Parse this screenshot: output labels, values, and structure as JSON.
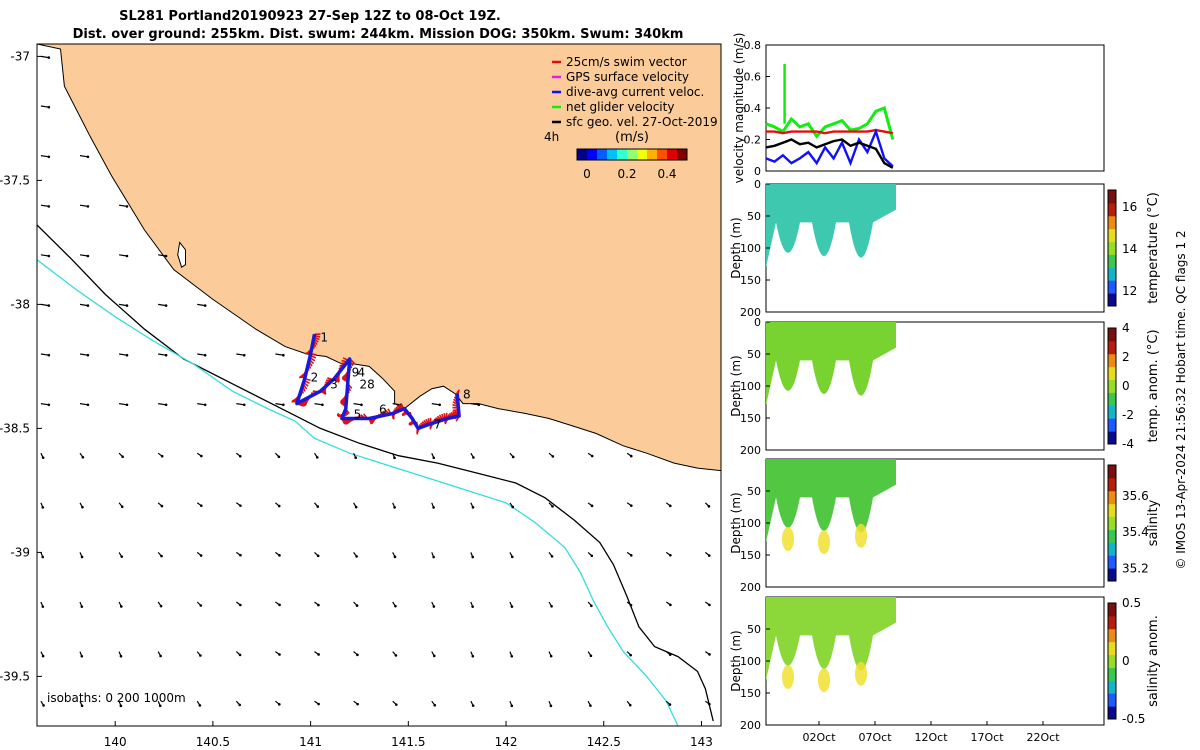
{
  "title": {
    "line1": "SL281 Portland20190923 27-Sep 12Z to 08-Oct 19Z.",
    "line2": "Dist. over ground: 255km. Dist. swum: 244km. Mission DOG: 350km. Swum: 340km"
  },
  "colors": {
    "land": "#fbcc9a",
    "coast": "#000000",
    "isobath_200": "#000000",
    "isobath_1000": "#33dddd",
    "track": "#1a1ad6",
    "swim": "#e01010",
    "gps": "#e020e0",
    "dac": "#1010ff",
    "net": "#10ee10",
    "geo": "#000000"
  },
  "chart_data": [
    {
      "id": "map",
      "type": "scatter",
      "xlabel": "",
      "ylabel": "",
      "xlim": [
        139.6,
        143.1
      ],
      "ylim": [
        -39.7,
        -36.95
      ],
      "xticks": [
        140,
        140.5,
        141,
        141.5,
        142,
        142.5,
        143
      ],
      "xtick_labels": [
        "140",
        "140.5",
        "141",
        "141.5",
        "142",
        "142.5",
        "143"
      ],
      "yticks": [
        -37,
        -37.5,
        -38,
        -38.5,
        -39,
        -39.5
      ],
      "ytick_labels": [
        "-37",
        "-37.5",
        "-38",
        "-38.5",
        "-39",
        "-39.5"
      ],
      "legend": {
        "placement": "top-right",
        "entries": [
          {
            "label": "25cm/s swim vector",
            "color": "#e01010"
          },
          {
            "label": "GPS surface velocity",
            "color": "#e020e0"
          },
          {
            "label": "dive-avg current veloc.",
            "color": "#1010ff"
          },
          {
            "label": "net glider velocity",
            "color": "#10ee10"
          },
          {
            "label": "sfc geo. vel. 27-Oct-2019",
            "color": "#000000"
          }
        ],
        "note": "4h",
        "colorbar_title": "(m/s)",
        "colorbar_ticks": [
          0,
          0.2,
          0.4
        ],
        "colorbar_tick_labels": [
          "0",
          "0.2",
          "0.4"
        ],
        "colorbar_range": [
          -0.05,
          0.5
        ]
      },
      "isobaths_label": "isobaths: 0   200  1000m",
      "coastline": [
        [
          139.6,
          -36.95
        ],
        [
          139.72,
          -36.97
        ],
        [
          139.74,
          -37.12
        ],
        [
          139.87,
          -37.32
        ],
        [
          139.98,
          -37.48
        ],
        [
          140.15,
          -37.7
        ],
        [
          140.3,
          -37.86
        ],
        [
          140.5,
          -37.98
        ],
        [
          140.72,
          -38.1
        ],
        [
          140.87,
          -38.17
        ],
        [
          140.98,
          -38.2
        ],
        [
          141.08,
          -38.21
        ],
        [
          141.16,
          -38.24
        ],
        [
          141.22,
          -38.24
        ],
        [
          141.3,
          -38.25
        ],
        [
          141.37,
          -38.3
        ],
        [
          141.43,
          -38.35
        ],
        [
          141.43,
          -38.4
        ],
        [
          141.48,
          -38.42
        ],
        [
          141.56,
          -38.37
        ],
        [
          141.62,
          -38.34
        ],
        [
          141.68,
          -38.33
        ],
        [
          141.74,
          -38.36
        ],
        [
          141.78,
          -38.4
        ],
        [
          141.86,
          -38.4
        ],
        [
          141.96,
          -38.42
        ],
        [
          142.1,
          -38.44
        ],
        [
          142.22,
          -38.46
        ],
        [
          142.34,
          -38.49
        ],
        [
          142.46,
          -38.52
        ],
        [
          142.6,
          -38.57
        ],
        [
          142.72,
          -38.6
        ],
        [
          142.86,
          -38.64
        ],
        [
          142.98,
          -38.66
        ],
        [
          143.1,
          -38.67
        ],
        [
          143.1,
          -36.95
        ]
      ],
      "isobath_200": [
        [
          139.6,
          -37.68
        ],
        [
          139.78,
          -37.82
        ],
        [
          139.95,
          -37.96
        ],
        [
          140.15,
          -38.1
        ],
        [
          140.35,
          -38.22
        ],
        [
          140.6,
          -38.32
        ],
        [
          140.85,
          -38.42
        ],
        [
          141.05,
          -38.5
        ],
        [
          141.25,
          -38.56
        ],
        [
          141.45,
          -38.61
        ],
        [
          141.65,
          -38.64
        ],
        [
          141.85,
          -38.68
        ],
        [
          142.05,
          -38.72
        ],
        [
          142.2,
          -38.78
        ],
        [
          142.35,
          -38.87
        ],
        [
          142.48,
          -38.96
        ],
        [
          142.55,
          -39.05
        ],
        [
          142.62,
          -39.18
        ],
        [
          142.68,
          -39.3
        ],
        [
          142.76,
          -39.38
        ],
        [
          142.88,
          -39.42
        ],
        [
          142.98,
          -39.48
        ],
        [
          143.02,
          -39.55
        ],
        [
          143.06,
          -39.68
        ]
      ],
      "isobath_1000": [
        [
          139.6,
          -37.82
        ],
        [
          139.8,
          -37.94
        ],
        [
          140.0,
          -38.05
        ],
        [
          140.2,
          -38.15
        ],
        [
          140.4,
          -38.24
        ],
        [
          140.6,
          -38.35
        ],
        [
          140.78,
          -38.42
        ],
        [
          140.92,
          -38.47
        ],
        [
          141.02,
          -38.54
        ],
        [
          141.2,
          -38.6
        ],
        [
          141.4,
          -38.65
        ],
        [
          141.6,
          -38.7
        ],
        [
          141.8,
          -38.75
        ],
        [
          142.0,
          -38.8
        ],
        [
          142.15,
          -38.88
        ],
        [
          142.3,
          -38.98
        ],
        [
          142.38,
          -39.08
        ],
        [
          142.45,
          -39.2
        ],
        [
          142.52,
          -39.3
        ],
        [
          142.6,
          -39.4
        ],
        [
          142.72,
          -39.5
        ],
        [
          142.82,
          -39.6
        ],
        [
          142.88,
          -39.7
        ]
      ],
      "kangaroo_lake": [
        [
          140.33,
          -37.75
        ],
        [
          140.36,
          -37.78
        ],
        [
          140.36,
          -37.84
        ],
        [
          140.34,
          -37.85
        ],
        [
          140.32,
          -37.8
        ]
      ],
      "track": [
        [
          141.02,
          -38.12
        ],
        [
          141.0,
          -38.2
        ],
        [
          140.97,
          -38.3
        ],
        [
          140.93,
          -38.4
        ],
        [
          141.05,
          -38.35
        ],
        [
          141.12,
          -38.3
        ],
        [
          141.2,
          -38.22
        ],
        [
          141.19,
          -38.32
        ],
        [
          141.18,
          -38.42
        ],
        [
          141.16,
          -38.46
        ],
        [
          141.3,
          -38.46
        ],
        [
          141.42,
          -38.44
        ],
        [
          141.48,
          -38.42
        ],
        [
          141.52,
          -38.46
        ],
        [
          141.55,
          -38.5
        ],
        [
          141.62,
          -38.48
        ],
        [
          141.7,
          -38.46
        ],
        [
          141.76,
          -38.45
        ],
        [
          141.75,
          -38.36
        ]
      ],
      "waypoint_labels": [
        {
          "text": "1",
          "lon": 141.05,
          "lat": -38.15
        },
        {
          "text": "2",
          "lon": 141.0,
          "lat": -38.31
        },
        {
          "text": "3",
          "lon": 141.1,
          "lat": -38.34
        },
        {
          "text": "4",
          "lon": 141.24,
          "lat": -38.29
        },
        {
          "text": "28",
          "lon": 141.25,
          "lat": -38.34
        },
        {
          "text": "9",
          "lon": 141.21,
          "lat": -38.29
        },
        {
          "text": "5",
          "lon": 141.22,
          "lat": -38.46
        },
        {
          "text": "6",
          "lon": 141.35,
          "lat": -38.44
        },
        {
          "text": "7",
          "lon": 141.63,
          "lat": -38.5
        },
        {
          "text": "8",
          "lon": 141.78,
          "lat": -38.38
        }
      ]
    },
    {
      "id": "velocity",
      "type": "line",
      "xlabel": "",
      "ylabel": "velocity magnitude (m/s)",
      "xlim": [
        0,
        1
      ],
      "ylim": [
        0,
        0.8
      ],
      "yticks": [
        0,
        0.2,
        0.4,
        0.6,
        0.8
      ],
      "ytick_labels": [
        "0",
        "0.2",
        "0.4",
        "0.6",
        "0.8"
      ],
      "x": [
        0,
        0.025,
        0.05,
        0.075,
        0.1,
        0.125,
        0.15,
        0.175,
        0.2,
        0.225,
        0.25,
        0.275,
        0.3,
        0.325,
        0.35,
        0.375
      ],
      "series": [
        {
          "name": "net glider velocity",
          "color": "#10ee10",
          "values": [
            0.3,
            0.28,
            0.25,
            0.33,
            0.28,
            0.3,
            0.22,
            0.28,
            0.3,
            0.32,
            0.26,
            0.27,
            0.3,
            0.38,
            0.4,
            0.2
          ]
        },
        {
          "name": "swim speed",
          "color": "#e01010",
          "values": [
            0.25,
            0.25,
            0.24,
            0.25,
            0.25,
            0.25,
            0.25,
            0.24,
            0.25,
            0.25,
            0.25,
            0.25,
            0.25,
            0.26,
            0.25,
            0.24
          ]
        },
        {
          "name": "dive-avg current",
          "color": "#1010ff",
          "values": [
            0.08,
            0.06,
            0.1,
            0.05,
            0.08,
            0.12,
            0.05,
            0.15,
            0.08,
            0.18,
            0.05,
            0.2,
            0.12,
            0.25,
            0.08,
            0.03
          ]
        },
        {
          "name": "geostrophic",
          "color": "#000000",
          "values": [
            0.15,
            0.16,
            0.18,
            0.2,
            0.17,
            0.18,
            0.15,
            0.17,
            0.19,
            0.2,
            0.16,
            0.18,
            0.16,
            0.14,
            0.05,
            0.02
          ]
        }
      ],
      "spike": {
        "x": 0.055,
        "value": 0.68
      }
    },
    {
      "id": "temperature",
      "type": "heatmap",
      "ylabel": "Depth (m)",
      "ylim": [
        200,
        0
      ],
      "yticks": [
        0,
        50,
        100,
        150,
        200
      ],
      "ytick_labels": [
        "0",
        "50",
        "100",
        "150",
        "200"
      ],
      "colorbar_label": "temperature (°C)",
      "colorbar_ticks": [
        "12",
        "14",
        "16"
      ],
      "colorbar_values": [
        12,
        14,
        16
      ],
      "colorbar_range": [
        11.3,
        16.8
      ],
      "fill_color": "#3ec8b0"
    },
    {
      "id": "temp_anom",
      "type": "heatmap",
      "ylabel": "Depth (m)",
      "ylim": [
        200,
        0
      ],
      "yticks": [
        0,
        50,
        100,
        150,
        200
      ],
      "ytick_labels": [
        "0",
        "50",
        "100",
        "150",
        "200"
      ],
      "colorbar_label": "temp. anom. (°C)",
      "colorbar_ticks": [
        "-4",
        "-2",
        "0",
        "2",
        "4"
      ],
      "colorbar_values": [
        -4,
        -2,
        0,
        2,
        4
      ],
      "colorbar_range": [
        -4,
        4
      ],
      "fill_color": "#78d230"
    },
    {
      "id": "salinity",
      "type": "heatmap",
      "ylabel": "Depth (m)",
      "ylim": [
        200,
        0
      ],
      "yticks": [
        50,
        100,
        150,
        200
      ],
      "ytick_labels": [
        "50",
        "100",
        "150",
        "200"
      ],
      "colorbar_label": "salinity",
      "colorbar_ticks": [
        "35.2",
        "35.4",
        "35.6"
      ],
      "colorbar_values": [
        35.2,
        35.4,
        35.6
      ],
      "colorbar_range": [
        35.13,
        35.77
      ],
      "fill_color": "#52c842"
    },
    {
      "id": "salinity_anom",
      "type": "heatmap",
      "ylabel": "Depth (m)",
      "ylim": [
        200,
        0
      ],
      "yticks": [
        50,
        100,
        150,
        200
      ],
      "ytick_labels": [
        "50",
        "100",
        "150",
        "200"
      ],
      "colorbar_label": "salinity anom.",
      "colorbar_ticks": [
        "-0.5",
        "0",
        "0.5"
      ],
      "colorbar_values": [
        -0.5,
        0,
        0.5
      ],
      "colorbar_range": [
        -0.5,
        0.5
      ],
      "fill_color": "#8cd83a",
      "xtick_labels": [
        "02Oct",
        "07Oct",
        "12Oct",
        "17Oct",
        "22Oct"
      ]
    }
  ],
  "footer": "© IMOS 13-Apr-2024 21:56:32 Hobart time. QC flags 1  2"
}
